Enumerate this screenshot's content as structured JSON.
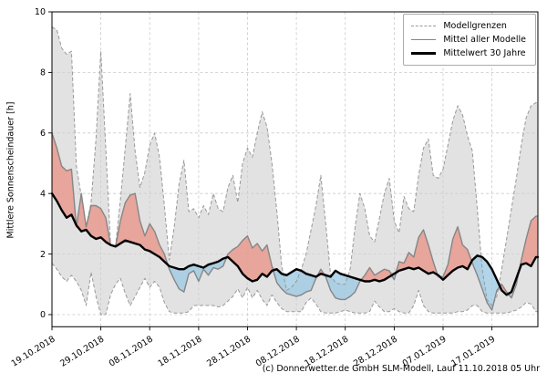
{
  "figure": {
    "ylabel": "Mittlere Sonnenscheindauer [h]",
    "caption": "(c) Donnerwetter.de GmbH SLM-Modell, Lauf 11.10.2018 05 Uhr"
  },
  "legend": {
    "items": [
      {
        "label": "Modellgrenzen",
        "style": "dashed-gray"
      },
      {
        "label": "Mittel aller Modelle",
        "style": "solid-gray"
      },
      {
        "label": "Mittelwert 30 Jahre",
        "style": "solid-black-thick"
      }
    ]
  },
  "chart_data": {
    "type": "line",
    "title": "",
    "xlabel": "",
    "ylabel": "Mittlere Sonnenscheindauer [h]",
    "grid": true,
    "legend_position": "upper right",
    "ylim": [
      -0.4,
      10
    ],
    "y_ticks": [
      0,
      2,
      4,
      6,
      8,
      10
    ],
    "xlim_days": [
      0,
      99.4
    ],
    "x_tick_days": [
      0,
      10,
      20,
      30,
      40,
      50,
      60,
      70,
      80,
      90
    ],
    "x_tick_labels": [
      "19.10.2018",
      "29.10.2018",
      "08.11.2018",
      "18.11.2018",
      "28.11.2018",
      "08.12.2018",
      "18.12.2018",
      "28.12.2018",
      "07.01.2019",
      "17.01.2019"
    ],
    "colors": {
      "range_fill": "#cfcfcf",
      "above_fill": "#e8968a",
      "below_fill": "#9fcbe4",
      "bound_line": "#999999",
      "mean_line": "#868686",
      "normal_line": "#000000"
    },
    "x_unit": "days since 19.10.2018",
    "series": [
      {
        "name": "Modellgrenzen (obere Grenze)",
        "values": [
          9.5,
          9.4,
          8.8,
          8.6,
          8.7,
          4.9,
          3.9,
          2.9,
          3.7,
          5.8,
          8.7,
          5.5,
          2.3,
          2.25,
          3.8,
          5.5,
          7.3,
          5.4,
          4.2,
          4.7,
          5.6,
          6.0,
          5.2,
          3.6,
          1.8,
          2.9,
          4.3,
          5.1,
          3.4,
          3.5,
          3.2,
          3.6,
          3.3,
          4.0,
          3.5,
          3.4,
          4.2,
          4.6,
          3.7,
          5.0,
          5.5,
          5.2,
          6.0,
          6.7,
          6.2,
          5.0,
          3.4,
          1.6,
          0.8,
          0.9,
          1.1,
          1.5,
          2.0,
          2.8,
          3.6,
          4.6,
          3.0,
          1.3,
          1.05,
          1.0,
          1.0,
          1.5,
          2.9,
          4.0,
          3.5,
          2.6,
          2.4,
          3.2,
          4.0,
          4.5,
          3.1,
          2.7,
          3.9,
          3.5,
          3.4,
          4.6,
          5.5,
          5.8,
          4.6,
          4.5,
          4.8,
          5.6,
          6.4,
          6.9,
          6.6,
          5.9,
          5.4,
          3.5,
          1.5,
          0.5,
          0.3,
          0.6,
          1.5,
          2.5,
          3.5,
          4.5,
          5.6,
          6.5,
          6.9,
          7.0
        ]
      },
      {
        "name": "Modellgrenzen (untere Grenze)",
        "values": [
          1.7,
          1.5,
          1.25,
          1.1,
          1.3,
          1.1,
          0.8,
          0.3,
          1.4,
          0.6,
          0.0,
          0.0,
          0.65,
          1.0,
          1.2,
          0.7,
          0.3,
          0.6,
          0.9,
          1.2,
          0.9,
          1.1,
          0.9,
          0.4,
          0.1,
          0.05,
          0.05,
          0.05,
          0.1,
          0.3,
          0.3,
          0.3,
          0.3,
          0.3,
          0.25,
          0.3,
          0.45,
          0.6,
          0.85,
          0.55,
          0.9,
          0.55,
          0.8,
          0.5,
          0.3,
          0.65,
          0.4,
          0.2,
          0.1,
          0.1,
          0.1,
          0.1,
          0.4,
          0.55,
          0.35,
          0.1,
          0.05,
          0.05,
          0.05,
          0.1,
          0.15,
          0.1,
          0.05,
          0.05,
          0.05,
          0.1,
          0.45,
          0.25,
          0.1,
          0.1,
          0.2,
          0.1,
          0.05,
          0.05,
          0.3,
          0.8,
          0.3,
          0.1,
          0.05,
          0.05,
          0.05,
          0.05,
          0.05,
          0.1,
          0.1,
          0.15,
          0.3,
          0.3,
          0.1,
          0.05,
          0.05,
          0.05,
          0.05,
          0.05,
          0.1,
          0.15,
          0.25,
          0.4,
          0.35,
          0.1
        ]
      },
      {
        "name": "Mittel aller Modelle",
        "values": [
          6.0,
          5.5,
          4.9,
          4.75,
          4.8,
          2.9,
          4.0,
          2.9,
          3.6,
          3.6,
          3.5,
          3.2,
          2.3,
          2.25,
          3.1,
          3.7,
          3.95,
          4.0,
          3.1,
          2.6,
          3.0,
          2.75,
          2.3,
          2.0,
          1.5,
          1.15,
          0.85,
          0.75,
          1.35,
          1.45,
          1.1,
          1.5,
          1.3,
          1.55,
          1.5,
          1.6,
          2.0,
          2.15,
          2.25,
          2.45,
          2.6,
          2.2,
          2.35,
          2.1,
          2.3,
          1.6,
          1.05,
          0.85,
          0.7,
          0.65,
          0.6,
          0.65,
          0.75,
          0.8,
          1.2,
          1.5,
          1.25,
          0.8,
          0.55,
          0.5,
          0.5,
          0.6,
          0.75,
          1.1,
          1.3,
          1.55,
          1.3,
          1.4,
          1.5,
          1.45,
          1.15,
          1.75,
          1.7,
          2.05,
          1.9,
          2.55,
          2.8,
          2.3,
          1.75,
          1.25,
          1.25,
          1.65,
          2.5,
          2.9,
          2.3,
          2.15,
          1.7,
          1.3,
          0.85,
          0.4,
          0.15,
          0.8,
          1.0,
          0.75,
          0.55,
          1.0,
          1.8,
          2.5,
          3.1,
          3.25
        ]
      },
      {
        "name": "Mittelwert 30 Jahre",
        "values": [
          4.0,
          3.75,
          3.45,
          3.2,
          3.3,
          2.95,
          2.75,
          2.8,
          2.6,
          2.5,
          2.55,
          2.4,
          2.3,
          2.25,
          2.35,
          2.45,
          2.4,
          2.35,
          2.3,
          2.15,
          2.1,
          2.0,
          1.9,
          1.75,
          1.6,
          1.55,
          1.5,
          1.5,
          1.6,
          1.65,
          1.6,
          1.55,
          1.65,
          1.7,
          1.75,
          1.85,
          1.9,
          1.75,
          1.6,
          1.35,
          1.2,
          1.1,
          1.15,
          1.35,
          1.25,
          1.45,
          1.5,
          1.35,
          1.3,
          1.4,
          1.5,
          1.45,
          1.35,
          1.3,
          1.25,
          1.35,
          1.3,
          1.25,
          1.45,
          1.35,
          1.3,
          1.25,
          1.2,
          1.15,
          1.1,
          1.1,
          1.15,
          1.1,
          1.15,
          1.25,
          1.35,
          1.45,
          1.5,
          1.55,
          1.5,
          1.55,
          1.45,
          1.35,
          1.4,
          1.3,
          1.15,
          1.3,
          1.45,
          1.55,
          1.6,
          1.5,
          1.8,
          1.95,
          1.9,
          1.75,
          1.5,
          1.15,
          0.8,
          0.65,
          0.75,
          1.2,
          1.65,
          1.7,
          1.6,
          1.9
        ]
      }
    ]
  }
}
